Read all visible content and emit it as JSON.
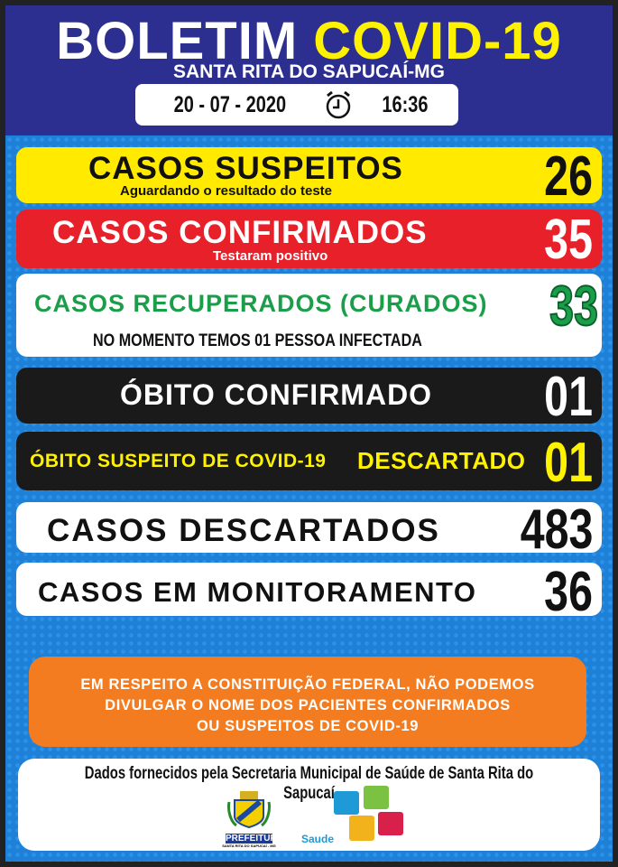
{
  "header": {
    "title_white": "BOLETIM",
    "title_yellow": "COVID-19",
    "subtitle": "SANTA RITA DO SAPUCAÍ-MG",
    "date": "20 - 07 - 2020",
    "time": "16:36",
    "clock_icon": "alarm-clock-icon"
  },
  "suspected": {
    "label": "CASOS SUSPEITOS",
    "note": "Aguardando o resultado do teste",
    "value": "26",
    "color": "#ffea00"
  },
  "confirmed": {
    "label": "CASOS CONFIRMADOS",
    "note": "Testaram positivo",
    "value": "35",
    "color": "#e8202a"
  },
  "recovered": {
    "label": "CASOS RECUPERADOS (CURADOS)",
    "value": "33",
    "note": "NO MOMENTO TEMOS 01 PESSOA INFECTADA",
    "color": "#1a9e4a"
  },
  "death": {
    "label": "ÓBITO CONFIRMADO",
    "value": "01"
  },
  "suspected_death": {
    "label": "ÓBITO SUSPEITO DE COVID-19",
    "status": "DESCARTADO",
    "value": "01",
    "color": "#fff200"
  },
  "discarded": {
    "label": "CASOS DESCARTADOS",
    "value": "483"
  },
  "monitoring": {
    "label": "CASOS EM MONITORAMENTO",
    "value": "36"
  },
  "notice": {
    "lines": [
      "EM RESPEITO A CONSTITUIÇÃO  FEDERAL, NÃO PODEMOS",
      "DIVULGAR O NOME DOS PACIENTES CONFIRMADOS",
      "OU SUSPEITOS DE COVID-19"
    ]
  },
  "footer": {
    "source": "Dados fornecidos pela Secretaria Municipal de Saúde de Santa Rita do Sapucaí",
    "prefeitura_logo": "PREFEITURA",
    "prefeitura_sub": "SANTA RITA DO SAPUCAÍ - MG",
    "saude_logo": "Saude"
  }
}
